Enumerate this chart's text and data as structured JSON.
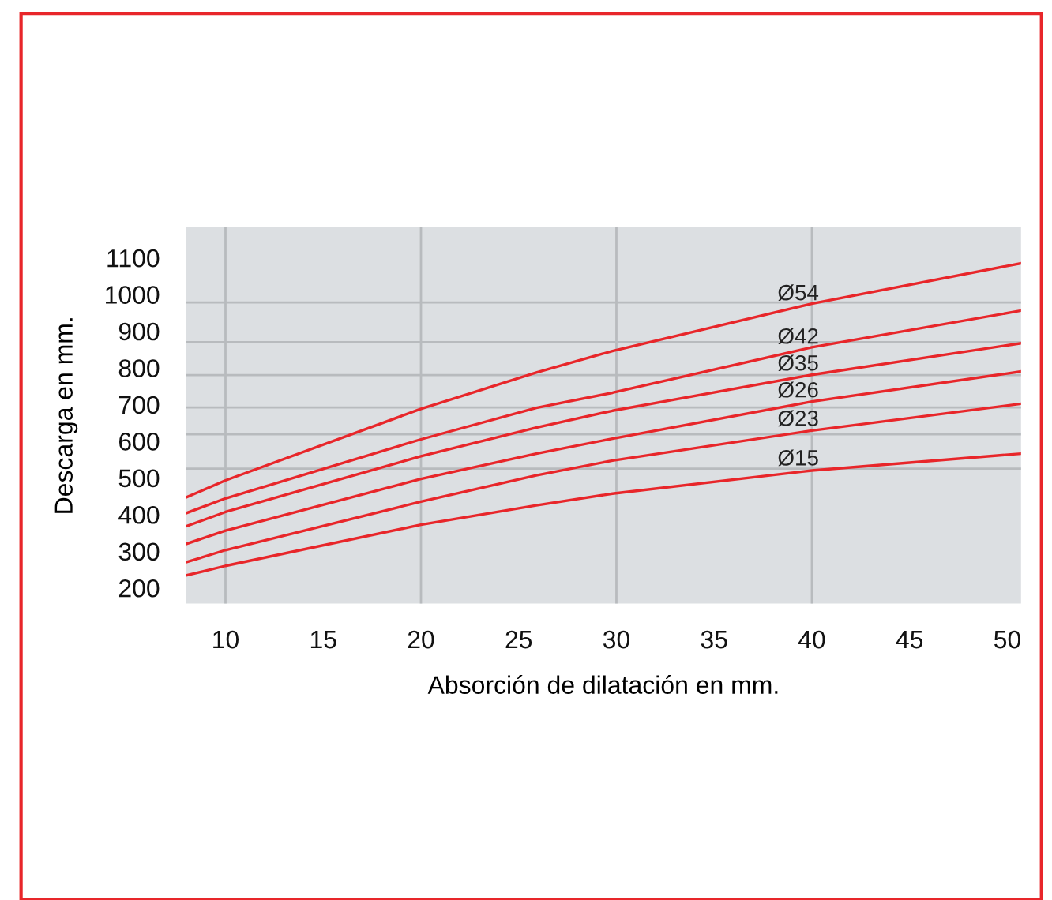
{
  "chart_data": {
    "type": "line",
    "xlabel": "Absorción de dilatación en mm.",
    "ylabel": "Descarga en mm.",
    "xlim": [
      8,
      50.7
    ],
    "xticks": [
      10,
      15,
      20,
      25,
      30,
      35,
      40,
      45,
      50
    ],
    "ylim": [
      157,
      1183
    ],
    "yticks": [
      200,
      300,
      400,
      500,
      600,
      700,
      800,
      900,
      1000,
      1100
    ],
    "grid": false,
    "legend": false,
    "marker": "none",
    "line_style": "solid",
    "x": [
      8,
      10,
      20,
      25.9,
      29.8,
      40,
      50.7
    ],
    "series": [
      {
        "name": "Ø54",
        "color": "#e8262a",
        "values": [
          447,
          493,
          688,
          787,
          846,
          975,
          1085
        ]
      },
      {
        "name": "Ø42",
        "color": "#e8262a",
        "values": [
          404,
          444,
          605,
          691,
          732,
          856,
          956
        ]
      },
      {
        "name": "Ø35",
        "color": "#e8262a",
        "values": [
          368,
          407,
          559,
          637,
          683,
          781,
          867
        ]
      },
      {
        "name": "Ø26",
        "color": "#e8262a",
        "values": [
          320,
          356,
          497,
          566,
          607,
          708,
          790
        ]
      },
      {
        "name": "Ø23",
        "color": "#e8262a",
        "values": [
          270,
          303,
          435,
          507,
          547,
          629,
          702
        ]
      },
      {
        "name": "Ø15",
        "color": "#e8262a",
        "values": [
          234,
          260,
          372,
          425,
          457,
          520,
          566
        ]
      }
    ],
    "ref_lines": [
      {
        "axis": "x",
        "value": 10,
        "color": "#b8bbbe"
      },
      {
        "axis": "x",
        "value": 20,
        "color": "#b8bbbe"
      },
      {
        "axis": "x",
        "value": 30,
        "color": "#b8bbbe"
      },
      {
        "axis": "x",
        "value": 40,
        "color": "#b8bbbe"
      },
      {
        "axis": "y",
        "value": 978,
        "color": "#b8bbbe"
      },
      {
        "axis": "y",
        "value": 870,
        "color": "#b8bbbe"
      },
      {
        "axis": "y",
        "value": 780,
        "color": "#b8bbbe"
      },
      {
        "axis": "y",
        "value": 692,
        "color": "#b8bbbe"
      },
      {
        "axis": "y",
        "value": 619,
        "color": "#b8bbbe"
      },
      {
        "axis": "y",
        "value": 525,
        "color": "#b8bbbe"
      }
    ]
  }
}
